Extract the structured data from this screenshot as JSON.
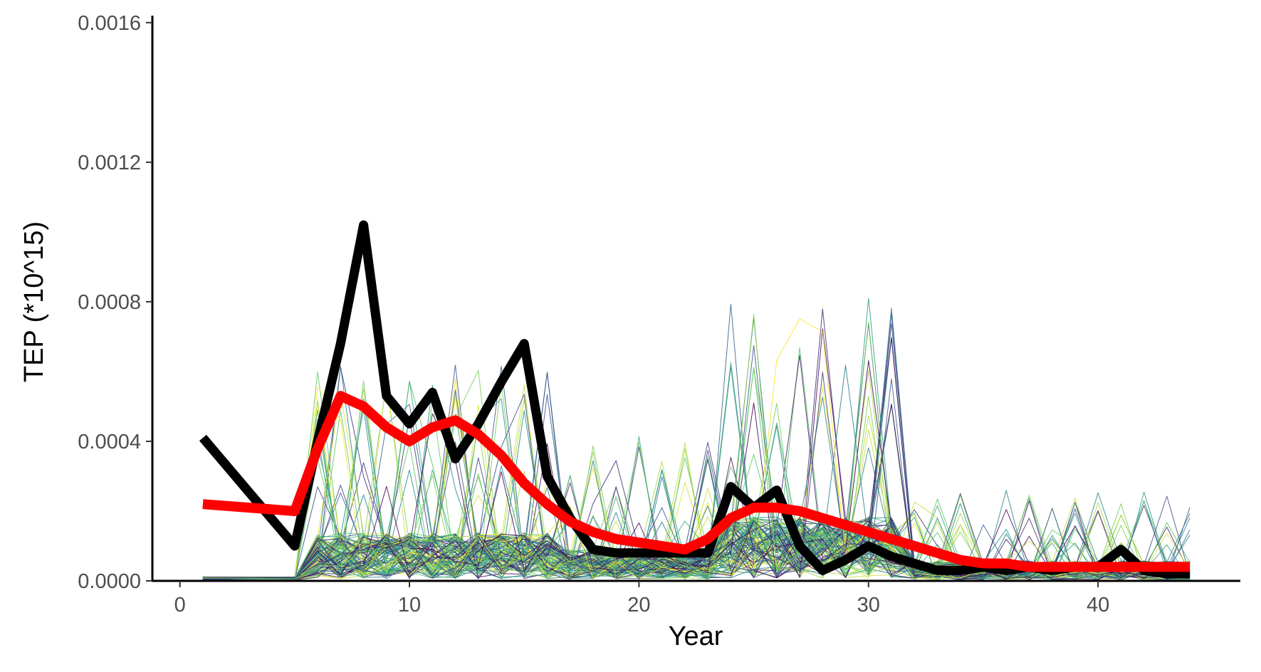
{
  "chart_data": {
    "type": "line",
    "xlabel": "Year",
    "ylabel": "TEP (*10^15)",
    "xlim": [
      -1.2,
      46.2
    ],
    "ylim": [
      0,
      0.00162
    ],
    "x_ticks": [
      0,
      10,
      20,
      30,
      40
    ],
    "x_tick_labels": [
      "0",
      "10",
      "20",
      "30",
      "40"
    ],
    "y_ticks": [
      0,
      0.0004,
      0.0008,
      0.0012,
      0.0016
    ],
    "y_tick_labels": [
      "0.0000",
      "0.0004",
      "0.0008",
      "0.0012",
      "0.0016"
    ],
    "grid": false,
    "legend": "none",
    "ensemble": {
      "count": 110,
      "colormap": "viridis",
      "colormap_stops": [
        "#440154",
        "#3b528b",
        "#21918c",
        "#5ec962",
        "#fde725"
      ],
      "x_range": [
        1,
        44
      ],
      "x_gap": [
        2,
        4
      ]
    },
    "highlight_series": [
      {
        "color": "#000000",
        "x": [
          1,
          5,
          6,
          7,
          8,
          9,
          10,
          11,
          12,
          13,
          14,
          15,
          16,
          17,
          18,
          19,
          20,
          21,
          22,
          23,
          24,
          25,
          26,
          27,
          28,
          29,
          30,
          31,
          32,
          33,
          34,
          35,
          36,
          37,
          38,
          39,
          40,
          41,
          42,
          43,
          44
        ],
        "values": [
          0.00041,
          0.0001,
          0.0004,
          0.00068,
          0.00102,
          0.00053,
          0.00045,
          0.00054,
          0.00035,
          0.00045,
          0.00057,
          0.00068,
          0.0003,
          0.00018,
          9e-05,
          8e-05,
          8e-05,
          8e-05,
          8e-05,
          8e-05,
          0.00027,
          0.00021,
          0.00026,
          0.0001,
          3e-05,
          6e-05,
          0.0001,
          7e-05,
          5e-05,
          3e-05,
          3e-05,
          4e-05,
          3e-05,
          4e-05,
          3e-05,
          4e-05,
          4e-05,
          9e-05,
          3e-05,
          2e-05,
          2e-05
        ]
      },
      {
        "color": "#ff0000",
        "x": [
          1,
          5,
          6,
          7,
          8,
          9,
          10,
          11,
          12,
          13,
          14,
          15,
          16,
          17,
          18,
          19,
          20,
          21,
          22,
          23,
          24,
          25,
          26,
          27,
          28,
          29,
          30,
          31,
          32,
          33,
          34,
          35,
          36,
          37,
          38,
          39,
          40,
          41,
          42,
          43,
          44
        ],
        "values": [
          0.00022,
          0.0002,
          0.00038,
          0.00053,
          0.0005,
          0.00044,
          0.0004,
          0.00044,
          0.00046,
          0.00042,
          0.00036,
          0.00028,
          0.00022,
          0.00017,
          0.00014,
          0.00012,
          0.00011,
          0.0001,
          9e-05,
          0.00012,
          0.00018,
          0.00021,
          0.00021,
          0.0002,
          0.00018,
          0.00016,
          0.00014,
          0.00012,
          0.0001,
          8e-05,
          6e-05,
          5e-05,
          5e-05,
          4e-05,
          4e-05,
          4e-05,
          4e-05,
          4e-05,
          4e-05,
          4e-05,
          4e-05
        ]
      }
    ]
  }
}
